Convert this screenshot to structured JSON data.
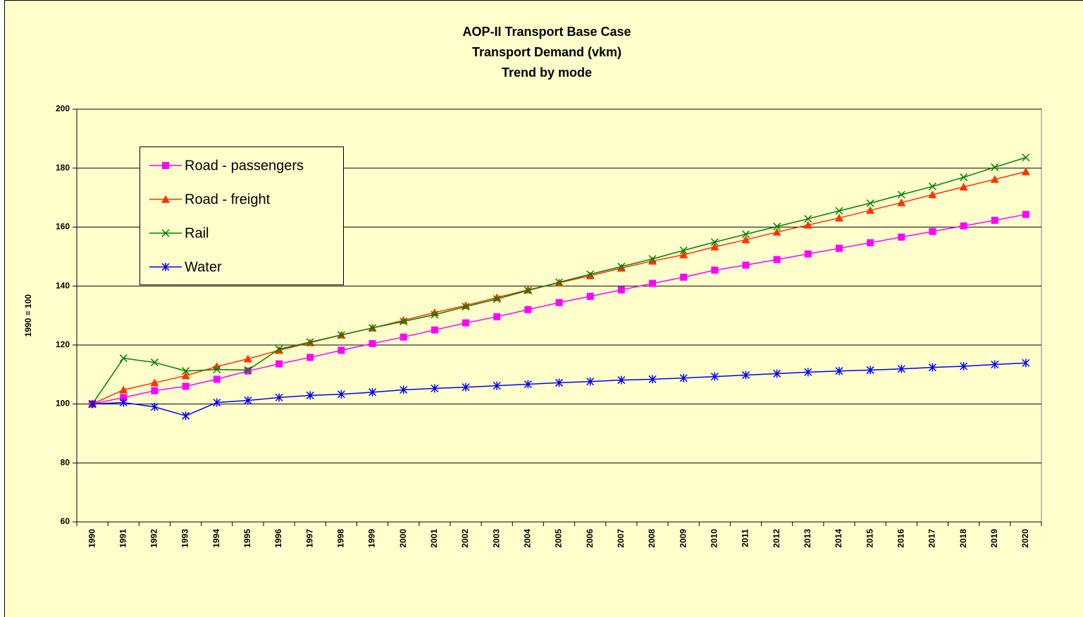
{
  "chart_data": {
    "type": "line",
    "title": [
      "AOP-II Transport Base Case",
      "Transport Demand (vkm)",
      "Trend by mode"
    ],
    "ylabel": "1990 = 100",
    "categories": [
      "1990",
      "1991",
      "1992",
      "1993",
      "1994",
      "1995",
      "1996",
      "1997",
      "1998",
      "1999",
      "2000",
      "2001",
      "2002",
      "2003",
      "2004",
      "2005",
      "2006",
      "2007",
      "2008",
      "2009",
      "2010",
      "2011",
      "2012",
      "2013",
      "2014",
      "2015",
      "2016",
      "2017",
      "2018",
      "2019",
      "2020"
    ],
    "series": [
      {
        "name": "Road - passengers",
        "color": "#ff00ff",
        "marker": "square",
        "values": [
          100,
          102.2,
          104.5,
          106,
          108.4,
          111.2,
          113.6,
          115.8,
          118.2,
          120.5,
          122.7,
          125.1,
          127.5,
          129.6,
          132,
          134.4,
          136.5,
          138.7,
          140.9,
          143,
          145.4,
          147.1,
          149,
          150.9,
          152.8,
          154.7,
          156.6,
          158.5,
          160.4,
          162.3,
          164.3
        ]
      },
      {
        "name": "Road - freight",
        "color": "#ff3300",
        "marker": "triangle",
        "values": [
          100,
          104.8,
          107.2,
          109.6,
          112.7,
          115.3,
          118.2,
          120.8,
          123.4,
          125.8,
          128.4,
          131,
          133.4,
          136.1,
          138.7,
          141.1,
          143.5,
          146.1,
          148.5,
          150.6,
          153.3,
          155.7,
          158.3,
          160.7,
          163.1,
          165.7,
          168.3,
          171,
          173.6,
          176.2,
          178.8
        ]
      },
      {
        "name": "Rail",
        "color": "#008000",
        "marker": "x",
        "values": [
          100,
          115.5,
          114.1,
          111.2,
          111.7,
          111.5,
          118.6,
          121,
          123.4,
          125.8,
          128,
          130.3,
          133,
          135.6,
          138.5,
          141.3,
          144,
          146.6,
          149.2,
          152.1,
          154.9,
          157.6,
          160.2,
          162.8,
          165.5,
          168.1,
          171,
          173.8,
          176.9,
          180.3,
          183.6
        ]
      },
      {
        "name": "Water",
        "color": "#0000ff",
        "marker": "star",
        "values": [
          100,
          100.5,
          99,
          96,
          100.5,
          101.2,
          102.2,
          102.9,
          103.3,
          104,
          104.8,
          105.3,
          105.7,
          106.2,
          106.7,
          107.2,
          107.6,
          108.1,
          108.4,
          108.8,
          109.3,
          109.8,
          110.3,
          110.8,
          111.2,
          111.5,
          111.9,
          112.4,
          112.8,
          113.4,
          113.9
        ]
      }
    ],
    "ylim": [
      60,
      200
    ],
    "yticks": [
      60,
      80,
      100,
      120,
      140,
      160,
      180,
      200
    ],
    "grid": true,
    "legend": "upper left"
  }
}
